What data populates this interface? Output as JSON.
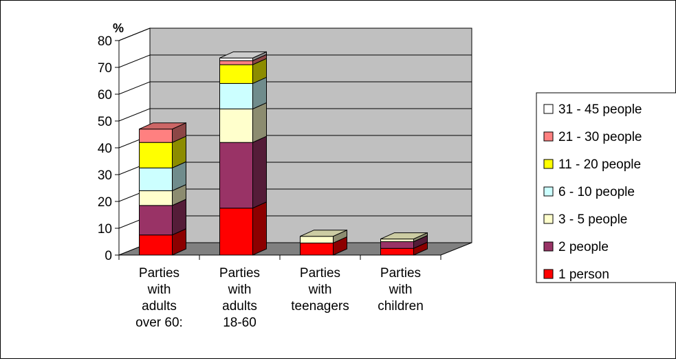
{
  "chart_data": {
    "type": "bar",
    "stacked": true,
    "three_d": true,
    "y_unit_label": "%",
    "ylim": [
      0,
      80
    ],
    "y_ticks": [
      0,
      10,
      20,
      30,
      40,
      50,
      60,
      70,
      80
    ],
    "grid": true,
    "legend_position": "right",
    "categories": [
      [
        "Parties",
        "with",
        "adults",
        "over 60:"
      ],
      [
        "Parties",
        "with",
        "adults",
        "18-60"
      ],
      [
        "Parties",
        "with",
        "teenagers"
      ],
      [
        "Parties",
        "with",
        "children"
      ]
    ],
    "series": [
      {
        "name": "1 person",
        "color": "#ff0000",
        "values": [
          7.5,
          17.5,
          4.5,
          2.5
        ]
      },
      {
        "name": "2 people",
        "color": "#993366",
        "values": [
          11,
          24.5,
          0,
          2.5
        ]
      },
      {
        "name": "3 - 5 people",
        "color": "#ffffcc",
        "values": [
          5.5,
          12.5,
          2.5,
          1
        ]
      },
      {
        "name": "6 - 10 people",
        "color": "#ccffff",
        "values": [
          8.5,
          9.5,
          0,
          0
        ]
      },
      {
        "name": "11 - 20 people",
        "color": "#ffff00",
        "values": [
          9.5,
          7,
          0,
          0
        ]
      },
      {
        "name": "21 - 30 people",
        "color": "#ff8080",
        "values": [
          5,
          1.5,
          0,
          0
        ]
      },
      {
        "name": "31 - 45 people",
        "color": "#ffffff",
        "values": [
          0,
          1,
          0,
          0
        ]
      }
    ]
  },
  "colors": {
    "plot_wall": "#c0c0c0",
    "floor": "#808080",
    "side_wall": "#ffffff"
  }
}
